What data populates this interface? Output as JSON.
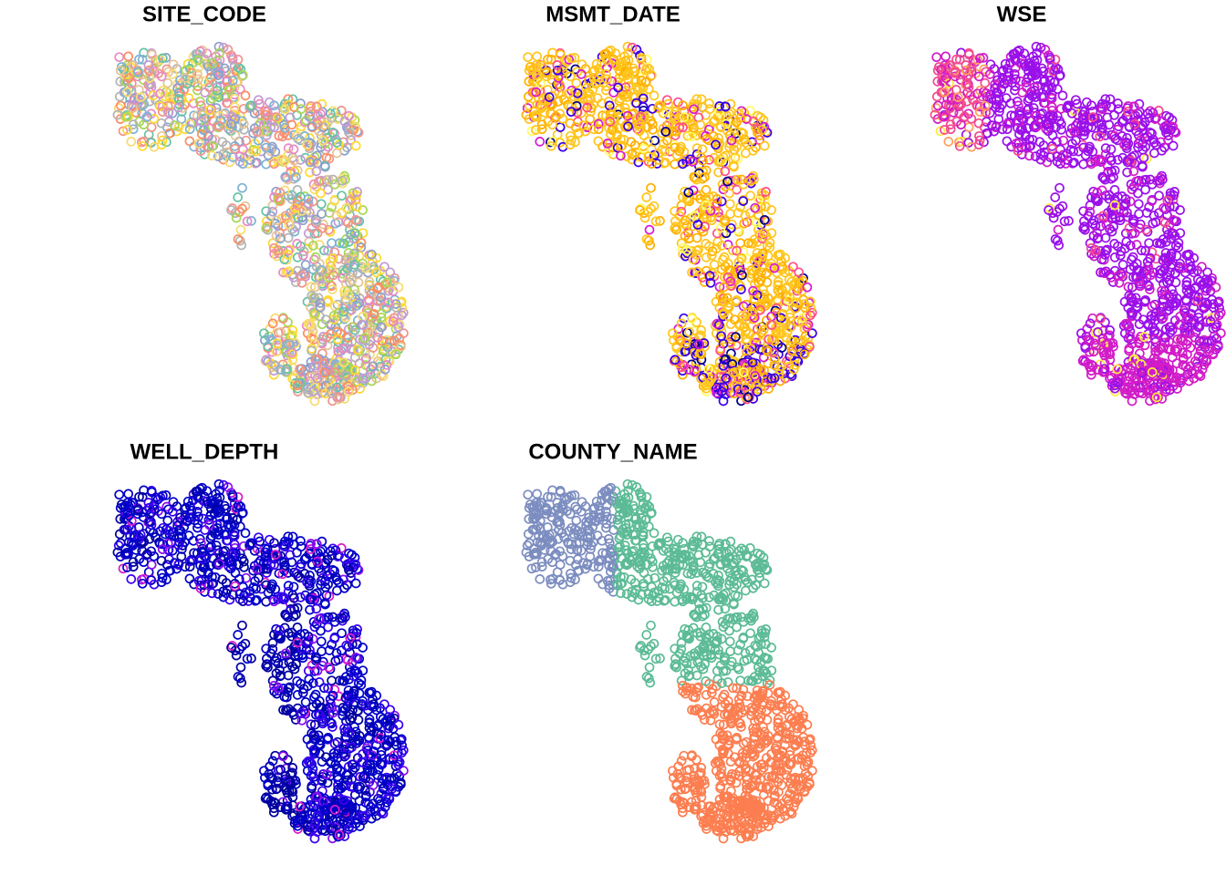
{
  "panels": [
    {
      "title": "SITE_CODE",
      "colors": [
        "#66c2a5",
        "#fc8d62",
        "#8da0cb",
        "#e78ac3",
        "#a6d854",
        "#ffd92f",
        "#e5c494",
        "#b3b3b3",
        "#7fb3d5",
        "#c39bd3",
        "#f7dc6f",
        "#f1948a"
      ]
    },
    {
      "title": "MSMT_DATE",
      "colors": [
        "#ffc61e",
        "#ffb000",
        "#ff4f8a",
        "#d41cd4",
        "#3a00e8",
        "#00008b",
        "#ffff60"
      ]
    },
    {
      "title": "WSE",
      "colors": [
        "#9a10ea",
        "#d21cc8",
        "#f24b8f",
        "#ffa060",
        "#ffea40"
      ]
    },
    {
      "title": "WELL_DEPTH",
      "colors": [
        "#0000c8",
        "#0000a0",
        "#3a00f0",
        "#8a10ee",
        "#d81cc8"
      ]
    },
    {
      "title": "COUNTY_NAME",
      "colors": [
        "#7c8dc0",
        "#5cbb96",
        "#fc7e50"
      ]
    }
  ]
}
